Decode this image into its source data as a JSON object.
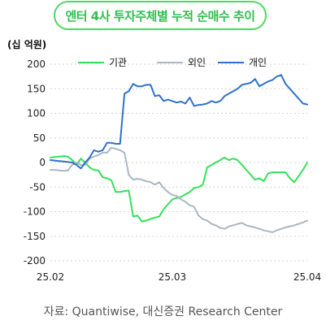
{
  "title": "엔터 4사 투자주체별 누적 순매수 추이",
  "source": "자료: Quantiwise, 대신증권 Research Center",
  "chart_data": {
    "type": "line",
    "title": "엔터 4사 투자주체별 누적 순매수 추이",
    "ylabel": "(십 억원)",
    "xlabel": "",
    "ylim": [
      -200,
      200
    ],
    "y_ticks": [
      200,
      150,
      100,
      50,
      0,
      -50,
      -100,
      -150,
      -200
    ],
    "x_tick_labels": [
      "25.02",
      "25.03",
      "25.04"
    ],
    "grid": true,
    "legend_position": "top",
    "x": [
      "2025-02-01",
      "2025-02-02",
      "2025-02-03",
      "2025-02-04",
      "2025-02-05",
      "2025-02-06",
      "2025-02-07",
      "2025-02-08",
      "2025-02-09",
      "2025-02-10",
      "2025-02-11",
      "2025-02-12",
      "2025-02-13",
      "2025-02-14",
      "2025-02-15",
      "2025-02-16",
      "2025-02-17",
      "2025-02-18",
      "2025-02-19",
      "2025-02-20",
      "2025-02-21",
      "2025-02-22",
      "2025-02-23",
      "2025-02-24",
      "2025-02-25",
      "2025-02-26",
      "2025-02-27",
      "2025-02-28",
      "2025-03-01",
      "2025-03-02",
      "2025-03-03",
      "2025-03-04",
      "2025-03-05",
      "2025-03-06",
      "2025-03-07",
      "2025-03-08",
      "2025-03-09",
      "2025-03-10",
      "2025-03-11",
      "2025-03-12",
      "2025-03-13",
      "2025-03-14",
      "2025-03-15",
      "2025-03-16",
      "2025-03-17",
      "2025-03-18",
      "2025-03-19",
      "2025-03-20",
      "2025-03-21",
      "2025-03-22",
      "2025-03-23",
      "2025-03-24",
      "2025-03-25",
      "2025-03-26",
      "2025-03-27",
      "2025-03-28",
      "2025-03-29",
      "2025-03-30",
      "2025-03-31",
      "2025-04-01"
    ],
    "series": [
      {
        "name": "기관",
        "color": "#35e05a",
        "values": [
          10,
          11,
          12,
          13,
          12,
          5,
          -5,
          8,
          0,
          -10,
          -15,
          -16,
          -30,
          -32,
          -36,
          -60,
          -60,
          -58,
          -57,
          -110,
          -108,
          -120,
          -118,
          -115,
          -112,
          -110,
          -95,
          -85,
          -75,
          -72,
          -70,
          -65,
          -60,
          -52,
          -50,
          -45,
          -10,
          -5,
          0,
          5,
          10,
          5,
          8,
          5,
          -5,
          -15,
          -25,
          -35,
          -32,
          -38,
          -22,
          -20,
          -20,
          -20,
          -20,
          -32,
          -40,
          -28,
          -15,
          0
        ]
      },
      {
        "name": "외인",
        "color": "#a9b7c6",
        "values": [
          -15,
          -15,
          -16,
          -17,
          -16,
          -5,
          0,
          -5,
          -5,
          8,
          12,
          15,
          20,
          20,
          30,
          28,
          25,
          20,
          -25,
          -35,
          -33,
          -35,
          -38,
          -40,
          -45,
          -40,
          -52,
          -60,
          -66,
          -68,
          -75,
          -80,
          -87,
          -90,
          -108,
          -115,
          -118,
          -125,
          -128,
          -133,
          -135,
          -130,
          -128,
          -125,
          -123,
          -128,
          -130,
          -132,
          -135,
          -138,
          -140,
          -142,
          -138,
          -135,
          -132,
          -130,
          -128,
          -125,
          -122,
          -118
        ]
      },
      {
        "name": "개인",
        "color": "#2f72c8",
        "values": [
          5,
          4,
          3,
          2,
          1,
          0,
          -5,
          -12,
          0,
          10,
          25,
          22,
          25,
          40,
          40,
          38,
          38,
          140,
          145,
          160,
          155,
          155,
          158,
          158,
          135,
          137,
          125,
          128,
          125,
          122,
          124,
          120,
          132,
          115,
          117,
          118,
          120,
          125,
          122,
          125,
          135,
          140,
          145,
          150,
          158,
          160,
          162,
          170,
          155,
          160,
          165,
          168,
          175,
          178,
          160,
          150,
          140,
          130,
          120,
          118
        ]
      }
    ]
  }
}
